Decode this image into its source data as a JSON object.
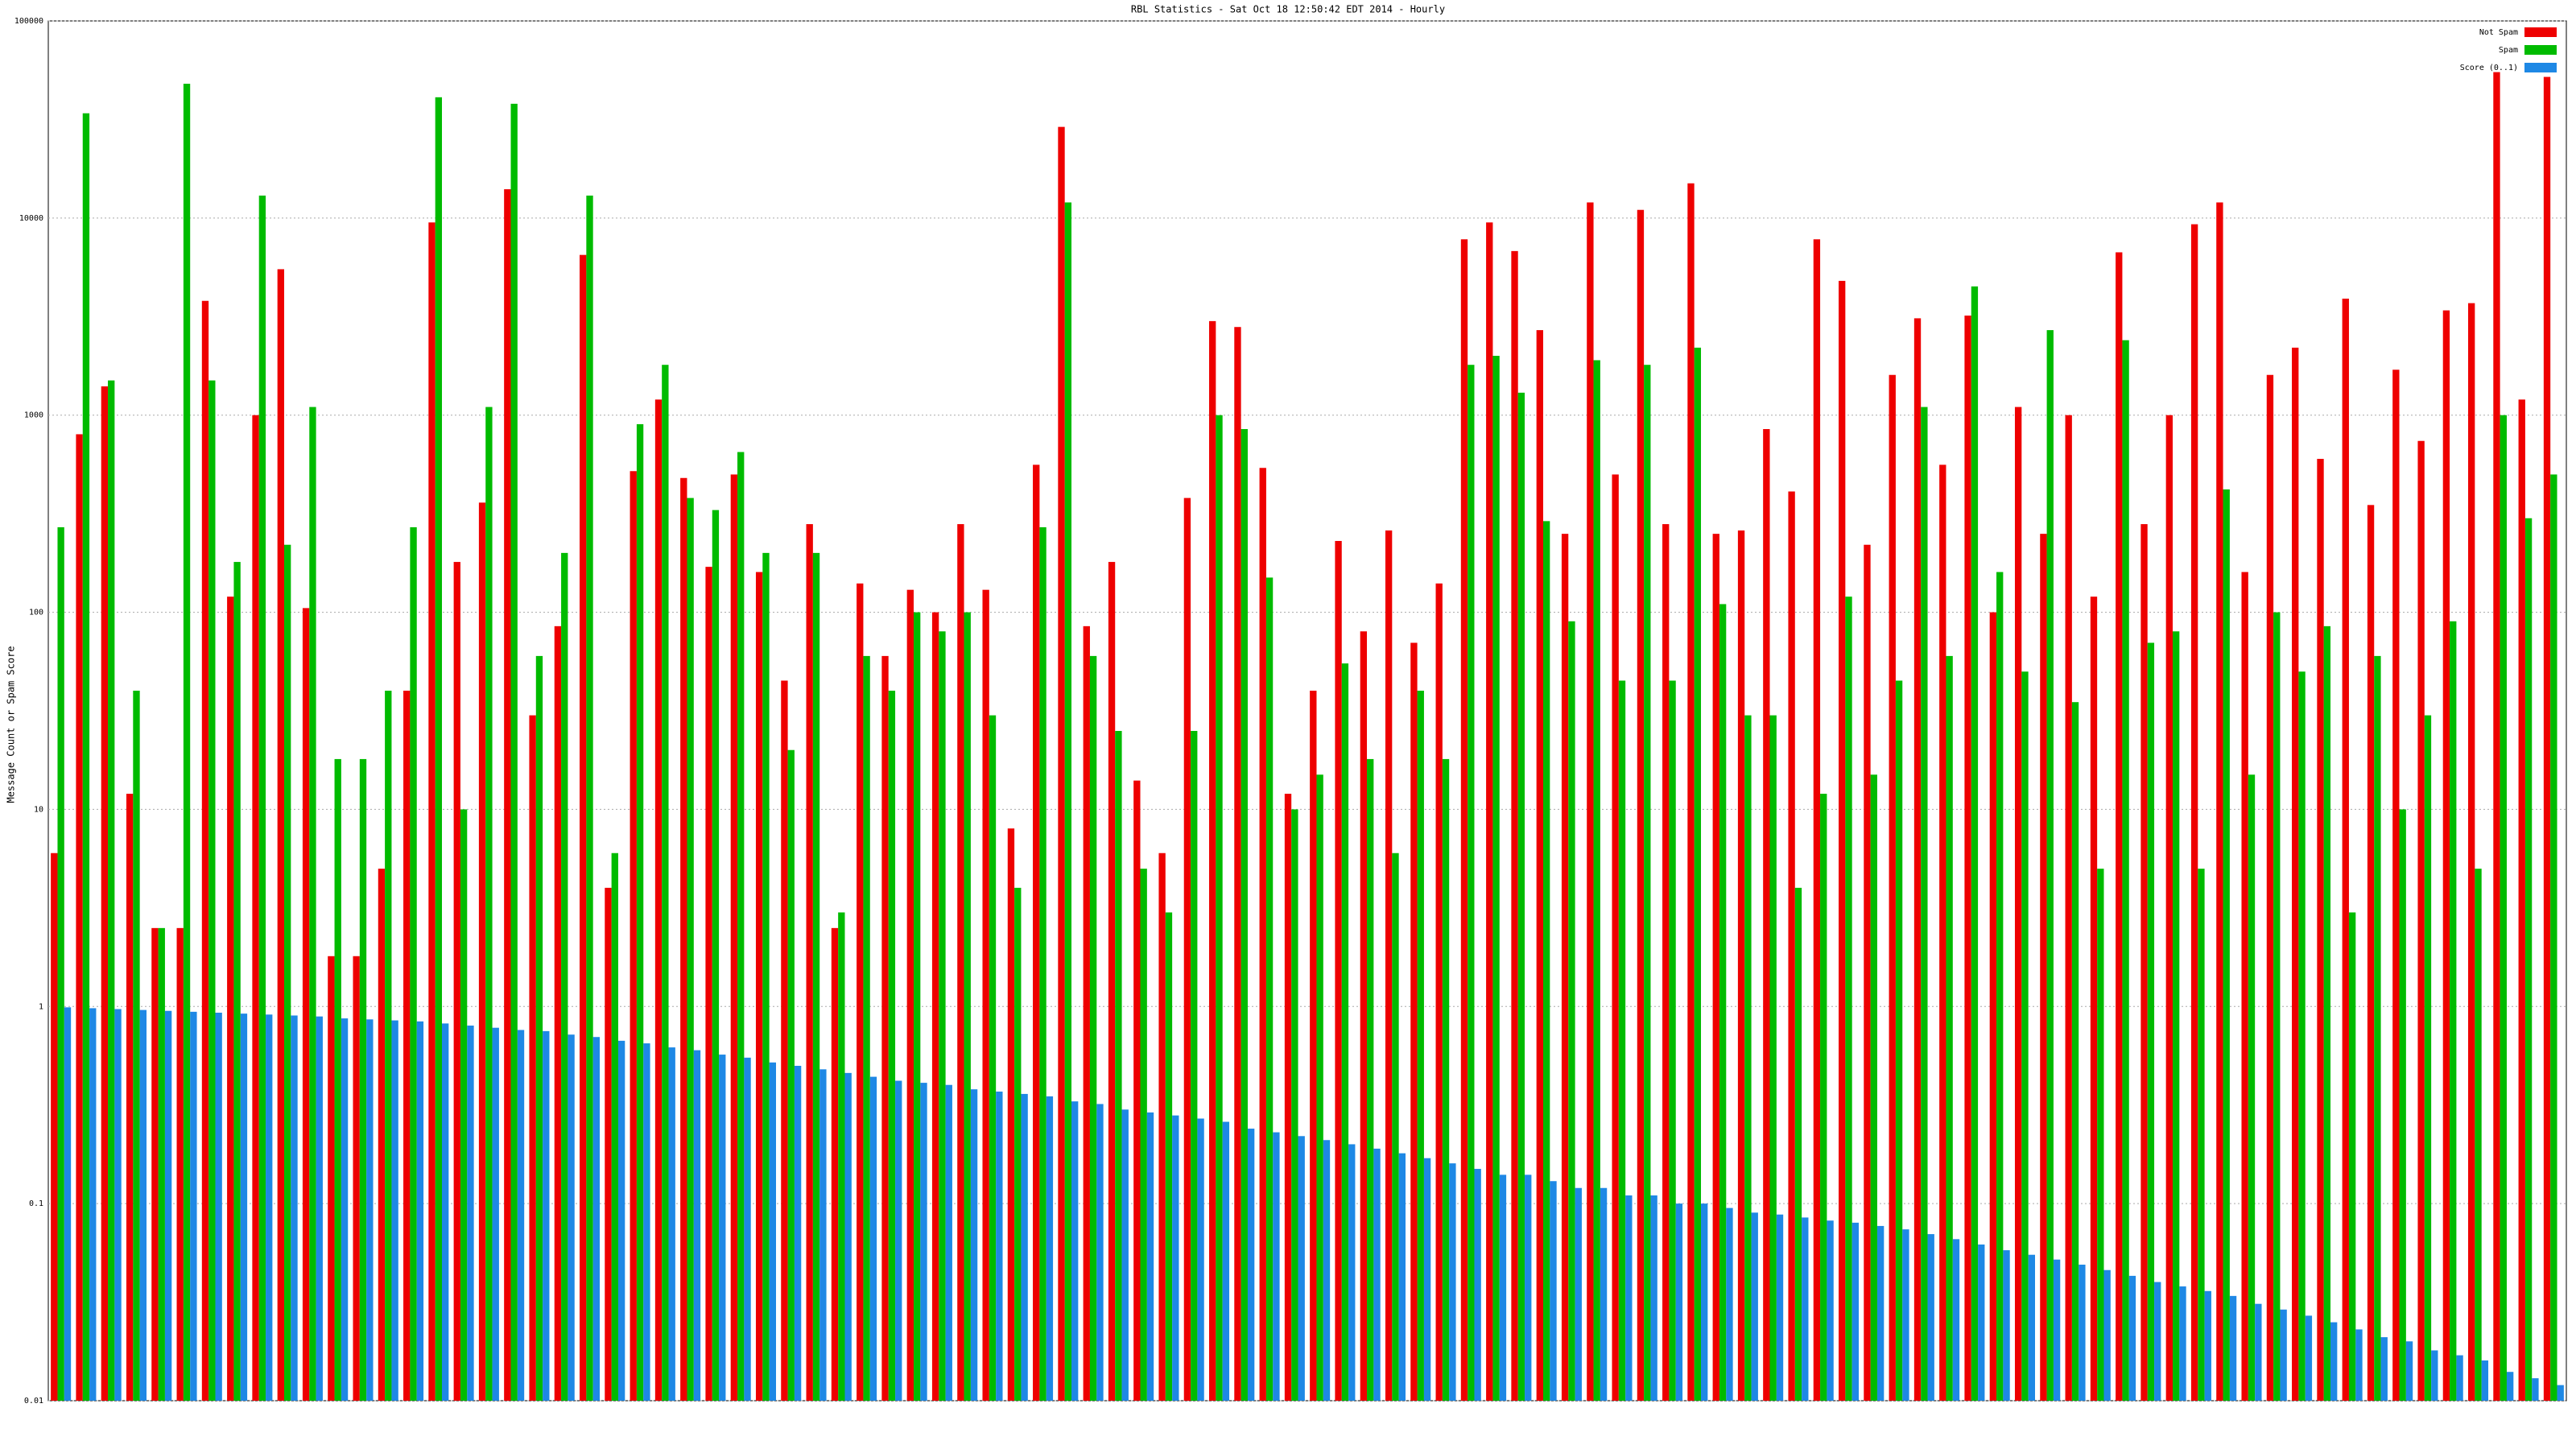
{
  "chart_data": {
    "type": "bar",
    "title": "RBL Statistics - Sat Oct 18 12:50:42 EDT 2014 - Hourly",
    "y_label": "Message Count or Spam Score",
    "log_scale": true,
    "grid": true,
    "legend": "upper right",
    "ylim": [
      0.01,
      100000
    ],
    "yticks": [
      0.01,
      0.1,
      1,
      10,
      100,
      1000,
      10000,
      100000
    ],
    "categories": [
      null,
      null,
      null,
      null,
      null,
      null,
      null,
      null,
      null,
      null,
      null,
      null,
      null,
      null,
      null,
      null,
      null,
      null,
      null,
      null,
      null,
      null,
      null,
      null,
      null,
      null,
      null,
      null,
      null,
      null,
      null,
      null,
      null,
      null,
      null,
      null,
      null,
      null,
      null,
      null,
      null,
      null,
      null,
      null,
      null,
      null,
      null,
      null,
      null,
      null,
      null,
      null,
      null,
      null,
      null,
      null,
      null,
      null,
      null,
      null,
      null,
      null,
      null,
      null,
      null,
      null,
      null,
      null,
      null,
      null,
      null,
      null,
      null,
      null,
      null,
      null,
      null,
      null,
      null,
      null,
      null,
      null,
      null,
      null,
      null,
      null,
      null,
      null,
      null,
      null,
      null,
      null,
      null,
      null,
      null,
      null,
      null,
      null,
      null,
      null
    ],
    "series": [
      {
        "name": "Not Spam",
        "color": "#ee0000",
        "values": [
          6,
          800,
          1400,
          12,
          2.5,
          2.5,
          3800,
          120,
          1000,
          5500,
          105,
          1.8,
          1.8,
          5,
          40,
          9500,
          180,
          360,
          14000,
          30,
          85,
          6500,
          4,
          520,
          1200,
          480,
          170,
          500,
          160,
          45,
          280,
          2.5,
          140,
          60,
          130,
          100,
          280,
          130,
          8,
          560,
          29000,
          85,
          180,
          14,
          6,
          380,
          3000,
          2800,
          540,
          12,
          40,
          230,
          80,
          260,
          70,
          140,
          7800,
          9500,
          6800,
          2700,
          250,
          12000,
          500,
          11000,
          280,
          15000,
          250,
          260,
          850,
          410,
          7800,
          4800,
          220,
          1600,
          3100,
          560,
          3200,
          100,
          1100,
          250,
          1000,
          120,
          6700,
          280,
          1000,
          9300,
          12000,
          160,
          1600,
          2200,
          600,
          3900,
          350,
          1700,
          740,
          3400,
          3700,
          55000,
          1200,
          52000
        ]
      },
      {
        "name": "Spam",
        "color": "#00bb00",
        "values": [
          270,
          34000,
          1500,
          40,
          2.5,
          48000,
          1500,
          180,
          13000,
          220,
          1100,
          18,
          18,
          40,
          270,
          41000,
          10,
          1100,
          38000,
          60,
          200,
          13000,
          6,
          900,
          1800,
          380,
          330,
          650,
          200,
          20,
          200,
          3,
          60,
          40,
          100,
          80,
          100,
          30,
          4,
          270,
          12000,
          60,
          25,
          5,
          3,
          25,
          1000,
          850,
          150,
          10,
          15,
          55,
          18,
          6,
          40,
          18,
          1800,
          2000,
          1300,
          290,
          90,
          1900,
          45,
          1800,
          45,
          2200,
          110,
          30,
          30,
          4,
          12,
          120,
          15,
          45,
          1100,
          60,
          4500,
          160,
          50,
          2700,
          35,
          5,
          2400,
          70,
          80,
          5,
          420,
          15,
          100,
          50,
          85,
          3,
          60,
          10,
          30,
          90,
          5,
          1000,
          300,
          500
        ]
      },
      {
        "name": "Score (0..1)",
        "color": "#1e88e5",
        "values": [
          0.99,
          0.98,
          0.97,
          0.96,
          0.95,
          0.94,
          0.93,
          0.92,
          0.91,
          0.9,
          0.89,
          0.87,
          0.86,
          0.85,
          0.84,
          0.82,
          0.8,
          0.78,
          0.76,
          0.75,
          0.72,
          0.7,
          0.67,
          0.65,
          0.62,
          0.6,
          0.57,
          0.55,
          0.52,
          0.5,
          0.48,
          0.46,
          0.44,
          0.42,
          0.41,
          0.4,
          0.38,
          0.37,
          0.36,
          0.35,
          0.33,
          0.32,
          0.3,
          0.29,
          0.28,
          0.27,
          0.26,
          0.24,
          0.23,
          0.22,
          0.21,
          0.2,
          0.19,
          0.18,
          0.17,
          0.16,
          0.15,
          0.14,
          0.14,
          0.13,
          0.12,
          0.12,
          0.11,
          0.11,
          0.1,
          0.1,
          0.095,
          0.09,
          0.088,
          0.085,
          0.082,
          0.08,
          0.077,
          0.074,
          0.07,
          0.066,
          0.062,
          0.058,
          0.055,
          0.052,
          0.049,
          0.046,
          0.043,
          0.04,
          0.038,
          0.036,
          0.034,
          0.031,
          0.029,
          0.027,
          0.025,
          0.023,
          0.021,
          0.02,
          0.018,
          0.017,
          0.016,
          0.014,
          0.013,
          0.012
        ]
      }
    ]
  }
}
